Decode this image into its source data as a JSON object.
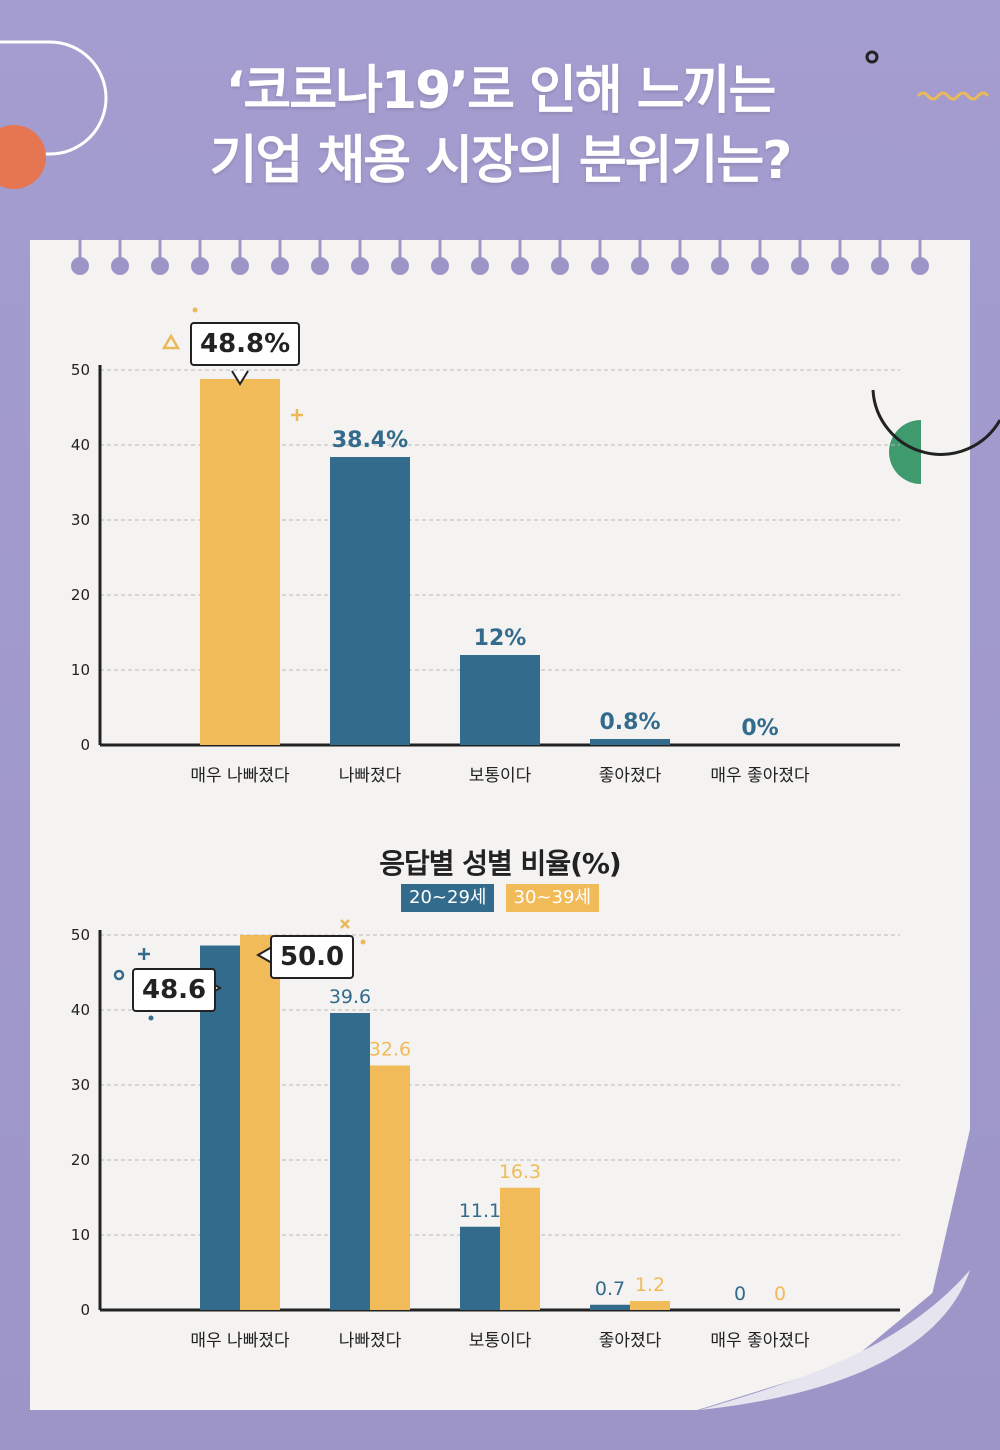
{
  "title": {
    "line1": "‘코로나19’로 인해 느끼는",
    "line2": "기업 채용 시장의 분위기는?"
  },
  "colors": {
    "background": "#a49dcf",
    "paper": "#f4f3f1",
    "blue": "#336b8c",
    "yellow": "#f0bb58",
    "accent_orange": "#e57651",
    "accent_green": "#3f9a6e"
  },
  "chart_data": [
    {
      "type": "bar",
      "title": "",
      "categories": [
        "매우 나빠졌다",
        "나빠졌다",
        "보통이다",
        "좋아졌다",
        "매우 좋아졌다"
      ],
      "values": [
        48.8,
        38.4,
        12,
        0.8,
        0
      ],
      "value_labels": [
        "48.8%",
        "38.4%",
        "12%",
        "0.8%",
        "0%"
      ],
      "bar_colors": [
        "#f0bb58",
        "#336b8c",
        "#336b8c",
        "#336b8c",
        "#336b8c"
      ],
      "yticks": [
        "0",
        "10",
        "20",
        "30",
        "40",
        "50"
      ],
      "ylim": [
        0,
        50
      ],
      "grid": true,
      "highlight": {
        "index": 0,
        "label": "48.8%"
      }
    },
    {
      "type": "bar",
      "title": "응답별 성별 비율(%)",
      "categories": [
        "매우 나빠졌다",
        "나빠졌다",
        "보통이다",
        "좋아졌다",
        "매우 좋아졌다"
      ],
      "series": [
        {
          "name": "20~29세",
          "color": "#336b8c",
          "values": [
            48.6,
            39.6,
            11.1,
            0.7,
            0
          ],
          "labels": [
            "48.6",
            "39.6",
            "11.1",
            "0.7",
            "0"
          ]
        },
        {
          "name": "30~39세",
          "color": "#f0bb58",
          "values": [
            50.0,
            32.6,
            16.3,
            1.2,
            0
          ],
          "labels": [
            "50.0",
            "32.6",
            "16.3",
            "1.2",
            "0"
          ]
        }
      ],
      "yticks": [
        "0",
        "10",
        "20",
        "30",
        "40",
        "50"
      ],
      "ylim": [
        0,
        50
      ],
      "grid": true,
      "legend_position": "top-center",
      "highlight": [
        {
          "series": 0,
          "index": 0,
          "label": "48.6"
        },
        {
          "series": 1,
          "index": 0,
          "label": "50.0"
        }
      ]
    }
  ]
}
